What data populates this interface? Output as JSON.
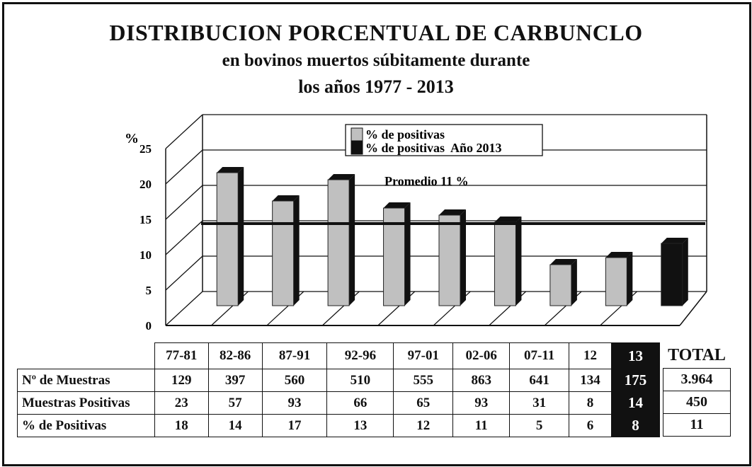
{
  "title": "DISTRIBUCION PORCENTUAL DE CARBUNCLO",
  "subtitle_line1": "en bovinos muertos súbitamente durante",
  "subtitle_line2": "los años 1977 - 2013",
  "chart_data": {
    "type": "bar",
    "ylabel": "%",
    "ylim": [
      0,
      25
    ],
    "yticks": [
      "0",
      "5",
      "10",
      "15",
      "20",
      "25"
    ],
    "categories": [
      "77-81",
      "82-86",
      "87-91",
      "92-96",
      "97-01",
      "02-06",
      "07-11",
      "12",
      "13"
    ],
    "series": [
      {
        "name": "% de positivas",
        "values": [
          18,
          14,
          17,
          13,
          12,
          11,
          5,
          6,
          null
        ],
        "color": "#c0c0c0"
      },
      {
        "name": "% de positivas  Año 2013",
        "values": [
          null,
          null,
          null,
          null,
          null,
          null,
          null,
          null,
          8
        ],
        "color": "#111111"
      }
    ],
    "reference_line": {
      "label": "Promedio 11 %",
      "value": 11
    },
    "legend_position": "top-center",
    "grid": true
  },
  "table": {
    "periods": [
      "77-81",
      "82-86",
      "87-91",
      "92-96",
      "97-01",
      "02-06",
      "07-11",
      "12",
      "13"
    ],
    "total_header": "TOTAL",
    "rows": [
      {
        "label": "Nº de Muestras",
        "values": [
          "129",
          "397",
          "560",
          "510",
          "555",
          "863",
          "641",
          "134",
          "175"
        ],
        "total": "3.964"
      },
      {
        "label": "Muestras Positivas",
        "values": [
          "23",
          "57",
          "93",
          "66",
          "65",
          "93",
          "31",
          "8",
          "14"
        ],
        "total": "450"
      },
      {
        "label": "% de Positivas",
        "values": [
          "18",
          "14",
          "17",
          "13",
          "12",
          "11",
          "5",
          "6",
          "8"
        ],
        "total": "11"
      }
    ]
  }
}
